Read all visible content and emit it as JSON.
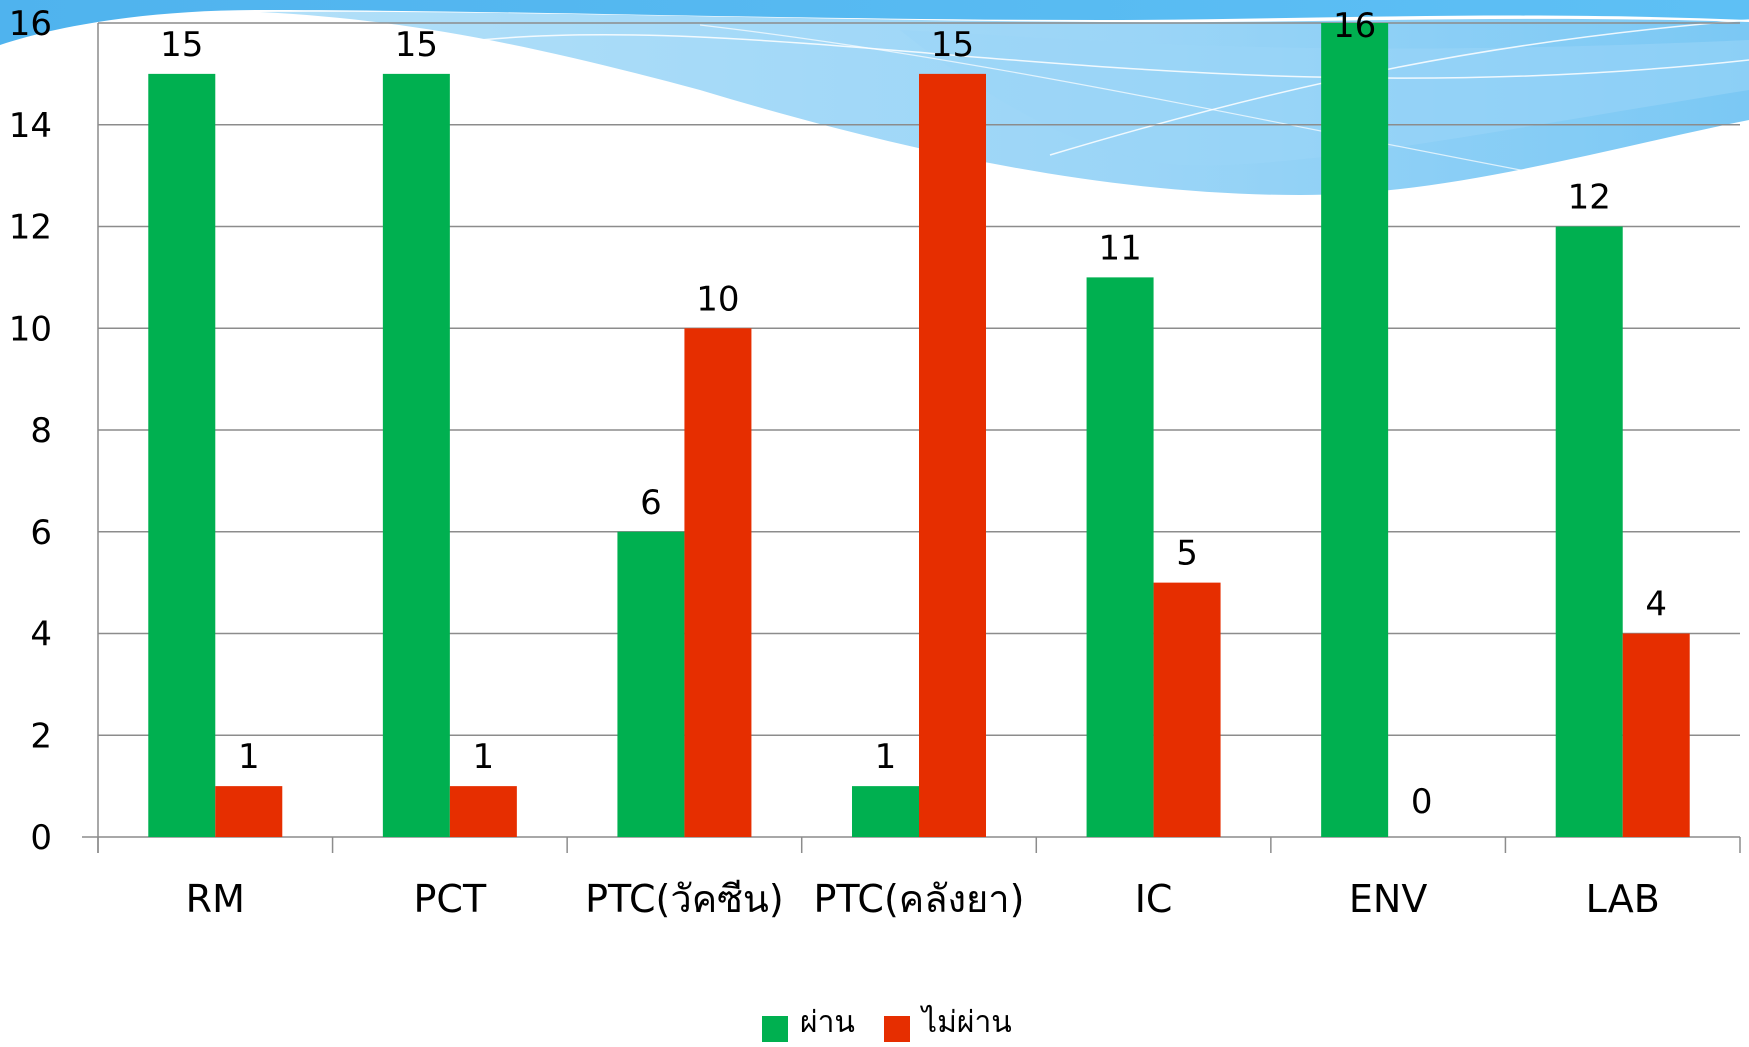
{
  "chart_data": {
    "type": "bar",
    "categories": [
      "RM",
      "PCT",
      "PTC(วัคซีน)",
      "PTC(คลังยา)",
      "IC",
      "ENV",
      "LAB"
    ],
    "series": [
      {
        "name": "ผ่าน",
        "color": "#00b050",
        "values": [
          15,
          15,
          6,
          1,
          11,
          16,
          12
        ]
      },
      {
        "name": "ไม่ผ่าน",
        "color": "#e62e00",
        "values": [
          1,
          1,
          10,
          15,
          5,
          0,
          4
        ]
      }
    ],
    "ylim": [
      0,
      16
    ],
    "yticks": [
      "0",
      "2",
      "4",
      "6",
      "8",
      "10",
      "12",
      "14",
      "16"
    ],
    "grid": true,
    "legend_position": "bottom"
  }
}
